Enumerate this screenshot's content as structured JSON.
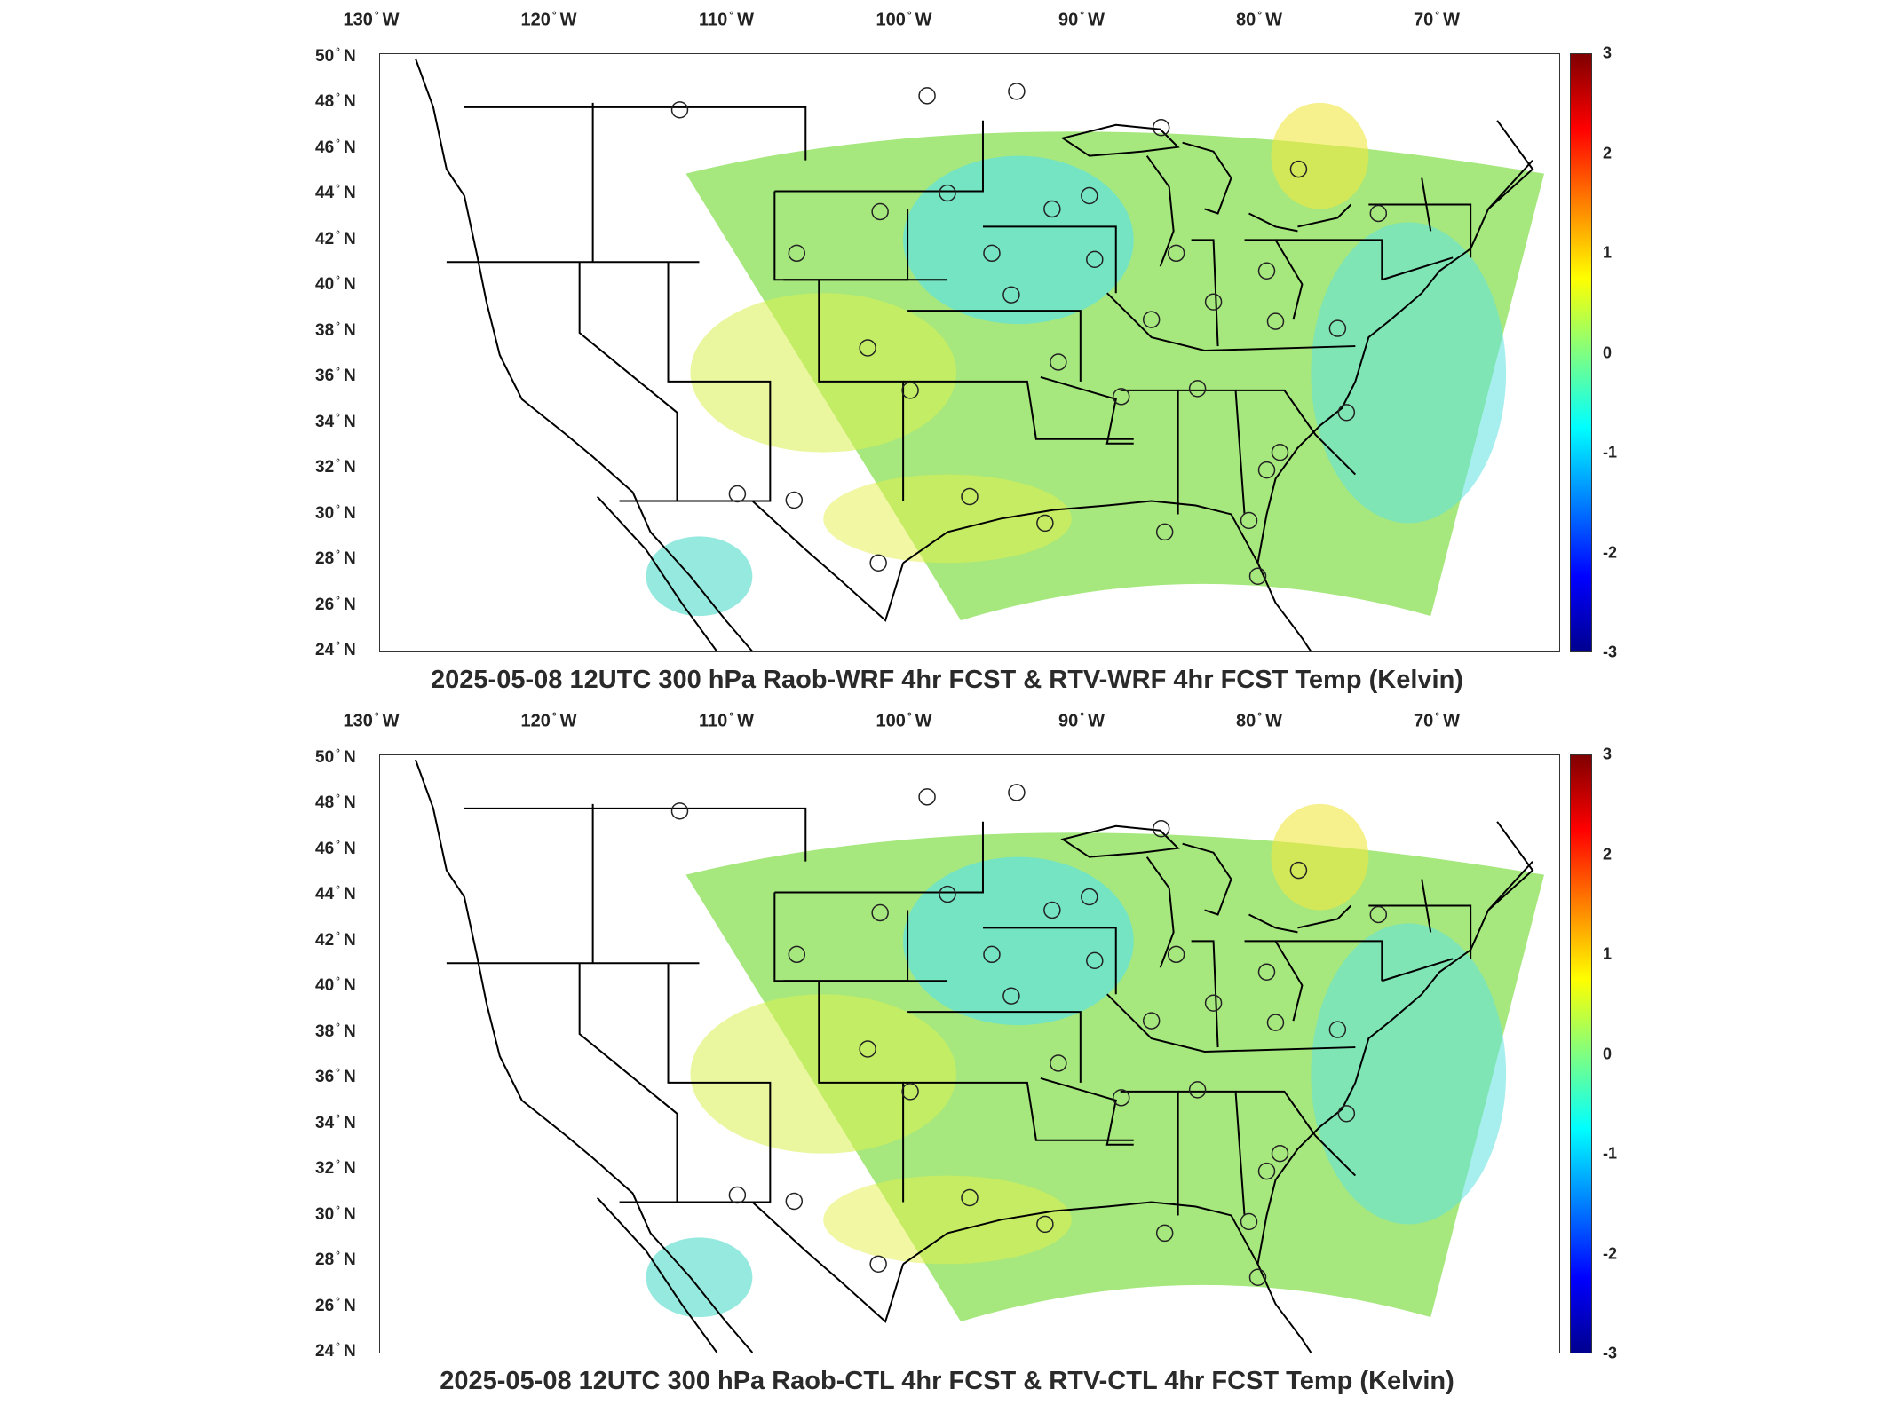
{
  "panels": [
    {
      "title": "2025-05-08 12UTC 300 hPa Raob-WRF 4hr FCST & RTV-WRF 4hr FCST Temp (Kelvin)"
    },
    {
      "title": "2025-05-08 12UTC 300 hPa Raob-CTL 4hr FCST & RTV-CTL 4hr FCST Temp (Kelvin)"
    }
  ],
  "axes": {
    "longitudes": [
      {
        "value": "130",
        "hemi": "W"
      },
      {
        "value": "120",
        "hemi": "W"
      },
      {
        "value": "110",
        "hemi": "W"
      },
      {
        "value": "100",
        "hemi": "W"
      },
      {
        "value": "90",
        "hemi": "W"
      },
      {
        "value": "80",
        "hemi": "W"
      },
      {
        "value": "70",
        "hemi": "W"
      }
    ],
    "latitudes": [
      {
        "value": "50",
        "hemi": "N"
      },
      {
        "value": "48",
        "hemi": "N"
      },
      {
        "value": "46",
        "hemi": "N"
      },
      {
        "value": "44",
        "hemi": "N"
      },
      {
        "value": "42",
        "hemi": "N"
      },
      {
        "value": "40",
        "hemi": "N"
      },
      {
        "value": "38",
        "hemi": "N"
      },
      {
        "value": "36",
        "hemi": "N"
      },
      {
        "value": "34",
        "hemi": "N"
      },
      {
        "value": "32",
        "hemi": "N"
      },
      {
        "value": "30",
        "hemi": "N"
      },
      {
        "value": "28",
        "hemi": "N"
      },
      {
        "value": "26",
        "hemi": "N"
      },
      {
        "value": "24",
        "hemi": "N"
      }
    ]
  },
  "colorbar": {
    "ticks": [
      "3",
      "2",
      "1",
      "0",
      "-1",
      "-2",
      "-3"
    ],
    "range": [
      -3,
      3
    ],
    "colormap": [
      "#00008f",
      "#0000ff",
      "#0080ff",
      "#00ffff",
      "#80ff80",
      "#ffff00",
      "#ff8000",
      "#ff0000",
      "#800000"
    ]
  }
}
